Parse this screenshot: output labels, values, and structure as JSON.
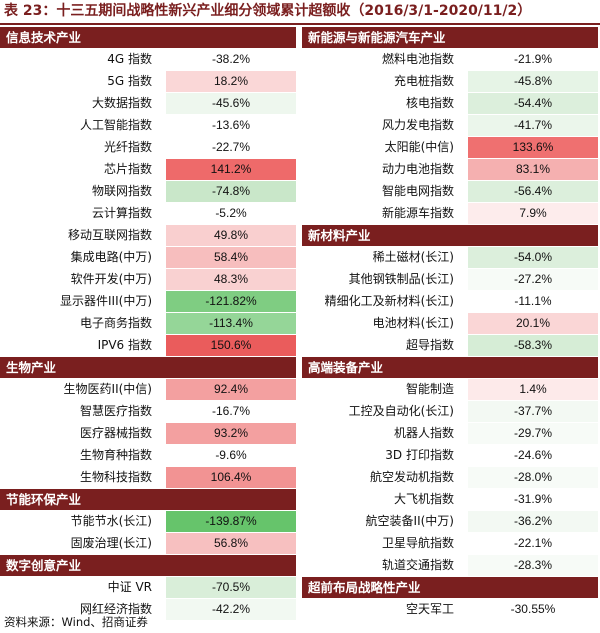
{
  "title": "表 23：十三五期间战略性新兴产业细分领域累计超额收（2016/3/1-2020/11/2）",
  "source": "资料来源：Wind、招商证券",
  "left": [
    {
      "header": "信息技术产业",
      "rows": [
        {
          "name": "4G 指数",
          "value": "-38.2%",
          "color": "#ffffff"
        },
        {
          "name": "5G 指数",
          "value": "18.2%",
          "color": "#fad7d7"
        },
        {
          "name": "大数据指数",
          "value": "-45.6%",
          "color": "#eef7ee"
        },
        {
          "name": "人工智能指数",
          "value": "-13.6%",
          "color": "#ffffff"
        },
        {
          "name": "光纤指数",
          "value": "-22.7%",
          "color": "#ffffff"
        },
        {
          "name": "芯片指数",
          "value": "141.2%",
          "color": "#ee6a6a"
        },
        {
          "name": "物联网指数",
          "value": "-74.8%",
          "color": "#c9e7c9"
        },
        {
          "name": "云计算指数",
          "value": "-5.2%",
          "color": "#ffffff"
        },
        {
          "name": "移动互联网指数",
          "value": "49.8%",
          "color": "#f9cfcf"
        },
        {
          "name": "集成电路(中万)",
          "value": "58.4%",
          "color": "#f7bebe"
        },
        {
          "name": "软件开发(中万)",
          "value": "48.3%",
          "color": "#f9d1d1"
        },
        {
          "name": "显示器件III(中万)",
          "value": "-121.82%",
          "color": "#7fcd82"
        },
        {
          "name": "电子商务指数",
          "value": "-113.4%",
          "color": "#95d698"
        },
        {
          "name": "IPV6 指数",
          "value": "150.6%",
          "color": "#ea5c5c"
        }
      ]
    },
    {
      "header": "生物产业",
      "rows": [
        {
          "name": "生物医药II(中信)",
          "value": "92.4%",
          "color": "#f3a0a0"
        },
        {
          "name": "智慧医疗指数",
          "value": "-16.7%",
          "color": "#ffffff"
        },
        {
          "name": "医疗器械指数",
          "value": "93.2%",
          "color": "#f3a0a0"
        },
        {
          "name": "生物育种指数",
          "value": "-9.6%",
          "color": "#ffffff"
        },
        {
          "name": "生物科技指数",
          "value": "106.4%",
          "color": "#f29393"
        }
      ]
    },
    {
      "header": "节能环保产业",
      "rows": [
        {
          "name": "节能节水(长江)",
          "value": "-139.87%",
          "color": "#66c46b"
        },
        {
          "name": "固废治理(长江)",
          "value": "56.8%",
          "color": "#f7c0c0"
        }
      ]
    },
    {
      "header": "数字创意产业",
      "rows": [
        {
          "name": "中证 VR",
          "value": "-70.5%",
          "color": "#d9eed9"
        },
        {
          "name": "网红经济指数",
          "value": "-42.2%",
          "color": "#f2f9f2"
        }
      ]
    }
  ],
  "right": [
    {
      "header": "新能源与新能源汽车产业",
      "rows": [
        {
          "name": "燃料电池指数",
          "value": "-21.9%",
          "color": "#ffffff"
        },
        {
          "name": "充电桩指数",
          "value": "-45.8%",
          "color": "#e6f4e6"
        },
        {
          "name": "核电指数",
          "value": "-54.4%",
          "color": "#dcefdc"
        },
        {
          "name": "风力发电指数",
          "value": "-41.7%",
          "color": "#ebf6eb"
        },
        {
          "name": "太阳能(中信)",
          "value": "133.6%",
          "color": "#ef7070"
        },
        {
          "name": "动力电池指数",
          "value": "83.1%",
          "color": "#f5b0b0"
        },
        {
          "name": "智能电网指数",
          "value": "-56.4%",
          "color": "#dcefdc"
        },
        {
          "name": "新能源车指数",
          "value": "7.9%",
          "color": "#fdecec"
        }
      ]
    },
    {
      "header": "新材料产业",
      "rows": [
        {
          "name": "稀土磁材(长江)",
          "value": "-54.0%",
          "color": "#dcefdc"
        },
        {
          "name": "其他钢铁制品(长江)",
          "value": "-27.2%",
          "color": "#f7fbf7"
        },
        {
          "name": "精细化工及新材料(长江)",
          "value": "-11.1%",
          "color": "#ffffff"
        },
        {
          "name": "电池材料(长江)",
          "value": "20.1%",
          "color": "#fad6d6"
        },
        {
          "name": "超导指数",
          "value": "-58.3%",
          "color": "#d6edd6"
        }
      ]
    },
    {
      "header": "高端装备产业",
      "rows": [
        {
          "name": "智能制造",
          "value": "1.4%",
          "color": "#fdeaea"
        },
        {
          "name": "工控及自动化(长江)",
          "value": "-37.7%",
          "color": "#f3f9f3"
        },
        {
          "name": "机器人指数",
          "value": "-29.7%",
          "color": "#f7fbf7"
        },
        {
          "name": "3D 打印指数",
          "value": "-24.6%",
          "color": "#ffffff"
        },
        {
          "name": "航空发动机指数",
          "value": "-28.0%",
          "color": "#f7fbf7"
        },
        {
          "name": "大飞机指数",
          "value": "-31.9%",
          "color": "#ffffff"
        },
        {
          "name": "航空装备II(中万)",
          "value": "-36.2%",
          "color": "#f3f9f3"
        },
        {
          "name": "卫星导航指数",
          "value": "-22.1%",
          "color": "#ffffff"
        },
        {
          "name": "轨道交通指数",
          "value": "-28.3%",
          "color": "#f7fbf7"
        }
      ]
    },
    {
      "header": "超前布局战略性产业",
      "rows": [
        {
          "name": "空天军工",
          "value": "-30.55%",
          "color": "#ffffff"
        }
      ]
    }
  ]
}
